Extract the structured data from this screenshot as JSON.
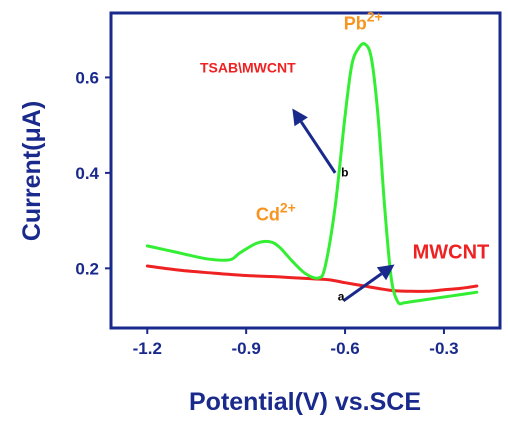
{
  "chart_data": {
    "type": "line",
    "xlabel": "Potential(V) vs.SCE",
    "ylabel": "Current(μA)",
    "xlim": [
      -1.31,
      -0.13
    ],
    "ylim": [
      0.075,
      0.735
    ],
    "x_ticks": [
      -1.2,
      -0.9,
      -0.6,
      -0.3
    ],
    "x_tick_labels": [
      "-1.2",
      "-0.9",
      "-0.6",
      "-0.3"
    ],
    "y_ticks": [
      0.2,
      0.4,
      0.6
    ],
    "y_tick_labels": [
      "0.2",
      "0.4",
      "0.6"
    ],
    "grid": false,
    "series": [
      {
        "name": "TSAB\\MWCNT",
        "color": "#33ee33",
        "x": [
          -1.2,
          -1.12,
          -1.02,
          -0.95,
          -0.92,
          -0.87,
          -0.83,
          -0.8,
          -0.76,
          -0.72,
          -0.68,
          -0.66,
          -0.63,
          -0.6,
          -0.58,
          -0.56,
          -0.54,
          -0.52,
          -0.5,
          -0.48,
          -0.46,
          -0.44,
          -0.42,
          -0.4,
          -0.35,
          -0.3,
          -0.25,
          -0.2
        ],
        "y": [
          0.247,
          0.235,
          0.22,
          0.218,
          0.232,
          0.252,
          0.256,
          0.245,
          0.215,
          0.189,
          0.18,
          0.205,
          0.33,
          0.52,
          0.625,
          0.66,
          0.67,
          0.64,
          0.52,
          0.33,
          0.18,
          0.13,
          0.128,
          0.13,
          0.135,
          0.14,
          0.145,
          0.15
        ]
      },
      {
        "name": "MWCNT",
        "color": "#ee2222",
        "x": [
          -1.2,
          -1.1,
          -1.0,
          -0.9,
          -0.8,
          -0.7,
          -0.65,
          -0.6,
          -0.55,
          -0.5,
          -0.45,
          -0.4,
          -0.35,
          -0.3,
          -0.25,
          -0.2
        ],
        "y": [
          0.205,
          0.196,
          0.19,
          0.185,
          0.182,
          0.178,
          0.176,
          0.17,
          0.164,
          0.158,
          0.153,
          0.152,
          0.152,
          0.155,
          0.158,
          0.163
        ]
      }
    ],
    "annotations": [
      {
        "name": "peak-label-pb",
        "base": "Pb",
        "sup": "2+",
        "color": "#f79521",
        "x": -0.545,
        "y": 0.7
      },
      {
        "name": "peak-label-cd",
        "base": "Cd",
        "sup": "2+",
        "color": "#f79521",
        "x": -0.81,
        "y": 0.3
      },
      {
        "name": "series-label-tsab",
        "text": "TSAB\\MWCNT",
        "color": "#ee2222",
        "x": -1.04,
        "y": 0.61
      },
      {
        "name": "series-label-mwcnt",
        "text": "MWCNT",
        "color": "#ee2222",
        "x": -0.395,
        "y": 0.221
      },
      {
        "name": "curve-letter-b",
        "text": "b",
        "color": "#000000",
        "x": -0.612,
        "y": 0.392
      },
      {
        "name": "curve-letter-a",
        "text": "a",
        "color": "#000000",
        "x": -0.622,
        "y": 0.133
      }
    ],
    "arrows": [
      {
        "name": "arrow-b-to-label",
        "color": "#1a2a8c",
        "from": [
          -0.63,
          0.4
        ],
        "to": [
          -0.76,
          0.535
        ]
      },
      {
        "name": "arrow-a-to-label",
        "color": "#1a2a8c",
        "from": [
          -0.605,
          0.132
        ],
        "to": [
          -0.45,
          0.208
        ]
      }
    ]
  },
  "colors": {
    "axis": "#1a2a8c",
    "tick_text": "#1a2a8c",
    "peak_label": "#f79521",
    "series_label": "#ee2222"
  }
}
